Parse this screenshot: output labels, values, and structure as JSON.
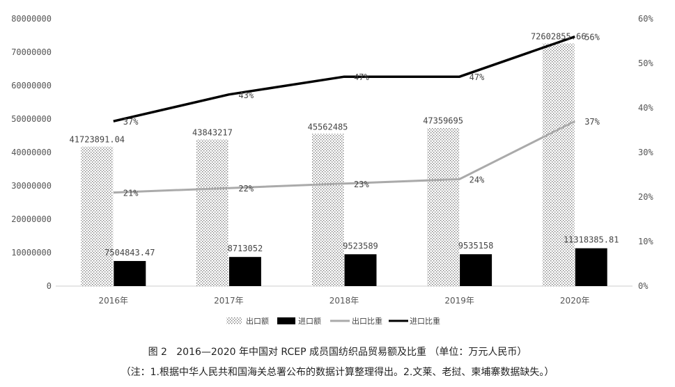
{
  "chart_data": {
    "type": "bar",
    "categories": [
      "2016年",
      "2017年",
      "2018年",
      "2019年",
      "2020年"
    ],
    "series": [
      {
        "name": "出口额",
        "kind": "bar",
        "axis": "left",
        "pattern": "dots",
        "values": [
          41723891.04,
          43843217,
          45562485,
          47359695,
          72602855.66
        ],
        "labels": [
          "41723891.04",
          "43843217",
          "45562485",
          "47359695",
          "72602855.66"
        ]
      },
      {
        "name": "进口额",
        "kind": "bar",
        "axis": "left",
        "color": "#000000",
        "values": [
          7504843.47,
          8713052,
          9523589,
          9535158,
          11318385.81
        ],
        "labels": [
          "7504843.47",
          "8713052",
          "9523589",
          "9535158",
          "11318385.81"
        ]
      },
      {
        "name": "出口比重",
        "kind": "line",
        "axis": "right",
        "color": "#aaaaaa",
        "values": [
          21,
          22,
          23,
          24,
          37
        ],
        "labels": [
          "21%",
          "22%",
          "23%",
          "24%",
          "37%"
        ]
      },
      {
        "name": "进口比重",
        "kind": "line",
        "axis": "right",
        "color": "#000000",
        "values": [
          37,
          43,
          47,
          47,
          56
        ],
        "labels": [
          "37%",
          "43%",
          "47%",
          "47%",
          "56%"
        ]
      }
    ],
    "ylim_left": [
      0,
      80000000
    ],
    "yticks_left": [
      "0",
      "10000000",
      "20000000",
      "30000000",
      "40000000",
      "50000000",
      "60000000",
      "70000000",
      "80000000"
    ],
    "ylim_right": [
      0,
      60
    ],
    "yticks_right": [
      "0%",
      "10%",
      "20%",
      "30%",
      "40%",
      "50%",
      "60%"
    ],
    "legend_position": "bottom",
    "grid": false
  },
  "caption": {
    "title": "图 2   2016—2020 年中国对 RCEP 成员国纺织品贸易额及比重 （单位：万元人民币）",
    "note": "（注：1.根据中华人民共和国海关总署公布的数据计算整理得出。2.文莱、老挝、柬埔寨数据缺失。）"
  }
}
